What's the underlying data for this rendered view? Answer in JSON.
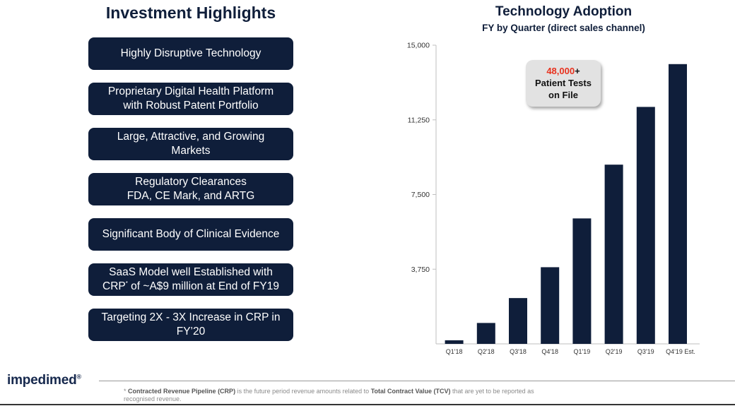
{
  "highlights": {
    "title": "Investment Highlights",
    "items": [
      {
        "lines": [
          "Highly Disruptive Technology"
        ]
      },
      {
        "lines": [
          "Proprietary Digital Health Platform",
          "with Robust Patent Portfolio"
        ]
      },
      {
        "lines": [
          "Large, Attractive, and Growing",
          "Markets"
        ]
      },
      {
        "lines": [
          "Regulatory Clearances",
          "FDA, CE Mark, and ARTG"
        ]
      },
      {
        "lines": [
          "Significant Body of Clinical Evidence"
        ]
      },
      {
        "lines": [
          "SaaS Model well Established with",
          "CRP",
          "*",
          " of ~A$9 million at End of FY19"
        ]
      },
      {
        "lines": [
          "Targeting 2X - 3X Increase in CRP in",
          "FY’20"
        ]
      }
    ]
  },
  "callout": {
    "number": "48,000",
    "suffix": "+",
    "line2": "Patient Tests",
    "line3": "on File"
  },
  "brand": {
    "logo_text": "impedimed",
    "logo_mark": "®"
  },
  "footnote": {
    "marker": "*",
    "crp_term": "Contracted Revenue Pipeline (CRP)",
    "text_middle": " is the future period revenue amounts related to ",
    "tcv_term": "Total Contract Value (TCV)",
    "text_end": " that are yet to be reported as recognised revenue."
  },
  "colors": {
    "navy": "#0f1e3a",
    "accent_red": "#e8321e",
    "callout_bg": "#e2e2e2"
  },
  "chart_data": {
    "type": "bar",
    "title": "Technology Adoption",
    "subtitle": "FY by Quarter (direct sales channel)",
    "categories": [
      "Q1'18",
      "Q2'18",
      "Q3'18",
      "Q4'18",
      "Q1'19",
      "Q2'19",
      "Q3'19",
      "Q4'19 Est."
    ],
    "values": [
      180,
      1050,
      2300,
      3850,
      6300,
      9000,
      11900,
      14050
    ],
    "ylim": [
      0,
      15000
    ],
    "yticks": [
      3750,
      7500,
      11250,
      15000
    ],
    "ytick_labels": [
      "3,750",
      "7,500",
      "11,250",
      "15,000"
    ],
    "grid": false,
    "legend": "none",
    "bar_color": "#0f1e3a"
  }
}
